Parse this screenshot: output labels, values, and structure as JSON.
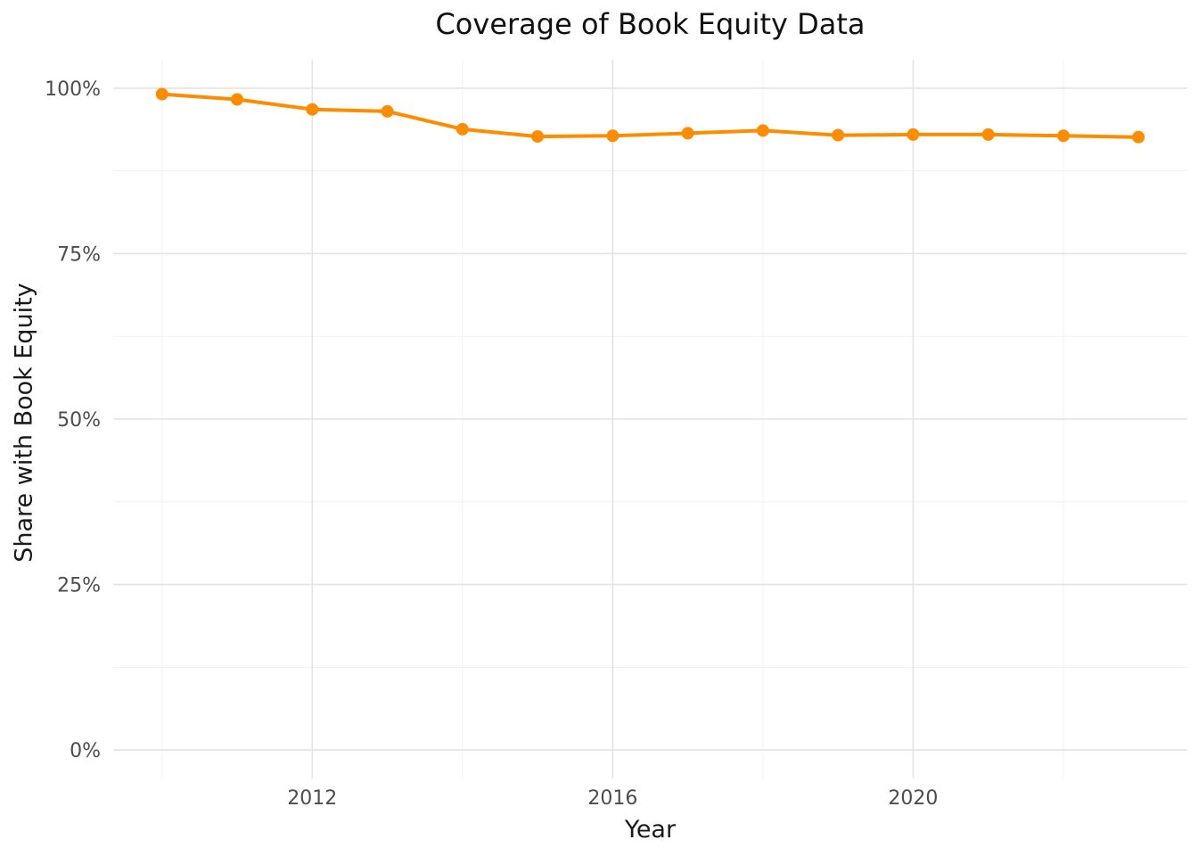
{
  "chart_data": {
    "type": "line",
    "title": "Coverage of Book Equity Data",
    "xlabel": "Year",
    "ylabel": "Share with Book Equity",
    "x": [
      2010,
      2011,
      2012,
      2013,
      2014,
      2015,
      2016,
      2017,
      2018,
      2019,
      2020,
      2021,
      2022,
      2023
    ],
    "series": [
      {
        "name": "Share with Book Equity (%)",
        "values": [
          99.1,
          98.3,
          96.8,
          96.5,
          93.8,
          92.7,
          92.8,
          93.2,
          93.6,
          92.9,
          93.0,
          93.0,
          92.8,
          92.6
        ]
      }
    ],
    "x_major_ticks": {
      "values": [
        2012,
        2016,
        2020
      ],
      "labels": [
        "2012",
        "2016",
        "2020"
      ]
    },
    "x_minor_ticks": [
      2010,
      2014,
      2018,
      2022
    ],
    "y_major_ticks": {
      "values": [
        0,
        25,
        50,
        75,
        100
      ],
      "labels": [
        "0%",
        "25%",
        "50%",
        "75%",
        "100%"
      ]
    },
    "y_minor_ticks": [
      12.5,
      37.5,
      62.5,
      87.5
    ],
    "xlim": [
      2009.35,
      2023.65
    ],
    "ylim": [
      -4.3,
      104.3
    ],
    "grid": "major+minor, no panel border, white background",
    "legend": "none",
    "colors": {
      "line": "#FF8C00",
      "point": "#FF8C00",
      "grid_major": "#E3E3E3",
      "grid_minor": "#F1F1F1",
      "tick_label": "#4D4D4D",
      "title_text": "#111111",
      "axis_title_text": "#1a1a1a",
      "background": "#FFFFFF"
    },
    "style": {
      "line_width": 4,
      "point_radius": 7
    }
  }
}
